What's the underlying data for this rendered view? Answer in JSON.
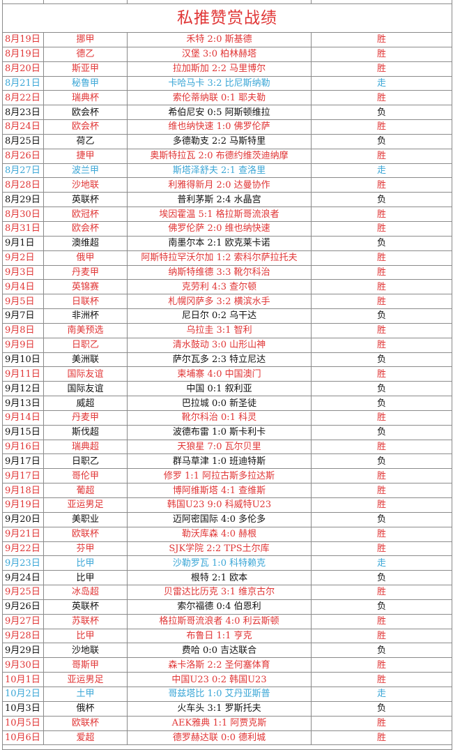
{
  "title": "私推赞赏战绩",
  "colors": {
    "胜": "#e03535",
    "走": "#3aa6d6",
    "负": "#111111"
  },
  "rows": [
    {
      "date": "8月19日",
      "league": "挪甲",
      "match": "禾特 2:0 斯基德",
      "result": "胜"
    },
    {
      "date": "8月19日",
      "league": "德乙",
      "match": "汉堡 3:0 柏林赫塔",
      "result": "胜"
    },
    {
      "date": "8月20日",
      "league": "斯亚甲",
      "match": "拉加斯加 2:2 马里博尔",
      "result": "胜"
    },
    {
      "date": "8月21日",
      "league": "秘鲁甲",
      "match": "卡哈马卡 3:2 比尼斯纳勒",
      "result": "走"
    },
    {
      "date": "8月22日",
      "league": "瑞典杯",
      "match": "索伦蒂纳联 0:1 耶夫勒",
      "result": "胜"
    },
    {
      "date": "8月23日",
      "league": "欧会杯",
      "match": "希伯尼安 0:5 阿斯顿维拉",
      "result": "负"
    },
    {
      "date": "8月24日",
      "league": "欧会杯",
      "match": "维也纳快速 1:0 佛罗伦萨",
      "result": "胜"
    },
    {
      "date": "8月25日",
      "league": "荷乙",
      "match": "多德勒支 2:2 马斯特里",
      "result": "负"
    },
    {
      "date": "8月26日",
      "league": "捷甲",
      "match": "奥斯特拉瓦 2:0 布德约维茨迪纳摩",
      "result": "胜"
    },
    {
      "date": "8月27日",
      "league": "波兰甲",
      "match": "斯塔泽舒夫 2:1 查洛里",
      "result": "走"
    },
    {
      "date": "8月28日",
      "league": "沙地联",
      "match": "利雅得新月 2:0 达曼协作",
      "result": "胜"
    },
    {
      "date": "8月29日",
      "league": "英联杯",
      "match": "普利茅斯 2:4 水晶宫",
      "result": "负"
    },
    {
      "date": "8月30日",
      "league": "欧冠杯",
      "match": "埃因霍温 5:1 格拉斯哥流浪者",
      "result": "胜"
    },
    {
      "date": "8月31日",
      "league": "欧会杯",
      "match": "佛罗伦萨 2:0 维也纳快速",
      "result": "胜"
    },
    {
      "date": "9月1日",
      "league": "澳维超",
      "match": "南墨尔本 2:1 欧克莱卡诺",
      "result": "负"
    },
    {
      "date": "9月2日",
      "league": "俄甲",
      "match": "阿斯特拉罕沃尔加 1:2 索科尔萨拉托夫",
      "result": "胜"
    },
    {
      "date": "9月3日",
      "league": "丹麦甲",
      "match": "纳斯特维德 3:3 靴尔科治",
      "result": "胜"
    },
    {
      "date": "9月4日",
      "league": "英锦赛",
      "match": "克劳利 4:3 查尔顿",
      "result": "胜"
    },
    {
      "date": "9月5日",
      "league": "日联杯",
      "match": "札幌冈萨多 3:2 横滨水手",
      "result": "胜"
    },
    {
      "date": "9月7日",
      "league": "非洲杯",
      "match": "尼日尔 0:2 乌干达",
      "result": "负"
    },
    {
      "date": "9月8日",
      "league": "南美预选",
      "match": "乌拉圭 3:1 智利",
      "result": "胜"
    },
    {
      "date": "9月9日",
      "league": "日职乙",
      "match": "清水鼓动 3:0 山形山神",
      "result": "胜"
    },
    {
      "date": "9月10日",
      "league": "美洲联",
      "match": "萨尔瓦多 2:3 特立尼达",
      "result": "负"
    },
    {
      "date": "9月11日",
      "league": "国际友谊",
      "match": "柬埔寨 4:0 中国澳门",
      "result": "胜"
    },
    {
      "date": "9月12日",
      "league": "国际友谊",
      "match": "中国 0:1 叙利亚",
      "result": "负"
    },
    {
      "date": "9月13日",
      "league": "威超",
      "match": "巴拉城 0:0 新圣徒",
      "result": "负"
    },
    {
      "date": "9月14日",
      "league": "丹麦甲",
      "match": "靴尔科治 0:1 科灵",
      "result": "胜"
    },
    {
      "date": "9月15日",
      "league": "斯伐超",
      "match": "波德布雷 1:0 斯卡利卡",
      "result": "负"
    },
    {
      "date": "9月16日",
      "league": "瑞典超",
      "match": "天狼星 7:0 瓦尔贝里",
      "result": "胜"
    },
    {
      "date": "9月17日",
      "league": "日职乙",
      "match": "群马草津 1:0 班迪特斯",
      "result": "负"
    },
    {
      "date": "9月17日",
      "league": "哥伦甲",
      "match": "修罗 1:1 阿拉古斯多拉达斯",
      "result": "胜"
    },
    {
      "date": "9月18日",
      "league": "葡超",
      "match": "博阿维斯塔 4:1 查维斯",
      "result": "胜"
    },
    {
      "date": "9月19日",
      "league": "亚运男足",
      "match": "韩国U23 9:0 科威特U23",
      "result": "胜"
    },
    {
      "date": "9月20日",
      "league": "美职业",
      "match": "迈阿密国际 4:0 多伦多",
      "result": "负"
    },
    {
      "date": "9月21日",
      "league": "欧联杯",
      "match": "勒沃库森 4:0 赫根",
      "result": "胜"
    },
    {
      "date": "9月22日",
      "league": "芬甲",
      "match": "SJK学院 2:2 TPS土尔库",
      "result": "胜"
    },
    {
      "date": "9月23日",
      "league": "比甲",
      "match": "沙勒罗瓦 1:0 科特赖克",
      "result": "走"
    },
    {
      "date": "9月24日",
      "league": "比甲",
      "match": "根特 2:1 欧本",
      "result": "负"
    },
    {
      "date": "9月25日",
      "league": "冰岛超",
      "match": "贝雷达比历克 3:1 维京古尔",
      "result": "胜"
    },
    {
      "date": "9月26日",
      "league": "英联杯",
      "match": "索尔福德 0:4 伯恩利",
      "result": "负"
    },
    {
      "date": "9月27日",
      "league": "苏联杯",
      "match": "格拉斯哥流浪者 4:0 利云斯顿",
      "result": "胜"
    },
    {
      "date": "9月28日",
      "league": "比甲",
      "match": "布鲁日 1:1 亨克",
      "result": "胜"
    },
    {
      "date": "9月29日",
      "league": "沙地联",
      "match": "费哈 0:0 吉达联合",
      "result": "负"
    },
    {
      "date": "9月30日",
      "league": "哥斯甲",
      "match": "森卡洛斯 2:2 圣何塞体育",
      "result": "胜"
    },
    {
      "date": "10月1日",
      "league": "亚运男足",
      "match": "中国U23 0:2 韩国U23",
      "result": "胜"
    },
    {
      "date": "10月2日",
      "league": "土甲",
      "match": "哥兹塔比 1:0 艾丹亚斯普",
      "result": "走"
    },
    {
      "date": "10月3日",
      "league": "俄杯",
      "match": "火车头 3:1 罗斯托夫",
      "result": "负"
    },
    {
      "date": "10月5日",
      "league": "欧联杯",
      "match": "AEK雅典 1:1 阿贾克斯",
      "result": "胜"
    },
    {
      "date": "10月6日",
      "league": "爱超",
      "match": "德罗赫达联 0:0 德利城",
      "result": "胜"
    }
  ]
}
